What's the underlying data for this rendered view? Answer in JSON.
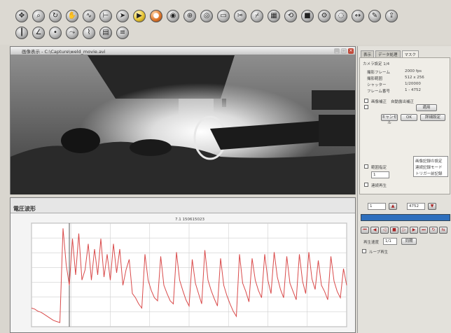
{
  "toolbar": {
    "row1_icons": [
      "move-icon",
      "zoom-icon",
      "rotate-icon",
      "hand-icon",
      "curve-icon",
      "measure-icon",
      "arrow-icon",
      "play-icon",
      "record-icon",
      "capture-icon",
      "crosshair-icon",
      "target-icon",
      "frame-icon",
      "clip-icon",
      "cut-icon",
      "film-icon",
      "reset-icon",
      "stop-icon",
      "settings-icon",
      "scope-icon",
      "pan-icon",
      "pencil-icon",
      "export-icon"
    ],
    "row2_icons": [
      "ruler-icon",
      "angle-icon",
      "point-icon",
      "track-icon",
      "graph-icon",
      "grid-icon",
      "data-icon"
    ]
  },
  "video_window": {
    "title": "画像表示 - C:\\Capture\\weld_movie.avi"
  },
  "chart_window": {
    "title": "電圧波形",
    "caption": "7.1 150615023"
  },
  "right_panel": {
    "tabs": [
      "表示",
      "データ処理",
      "マスク"
    ],
    "group_label": "カメラ設定 1/4",
    "info": [
      {
        "label": "撮影フレーム",
        "value": "2000 fps"
      },
      {
        "label": "撮影範囲",
        "value": "512 x 256"
      },
      {
        "label": "シャッター",
        "value": "1/20000"
      },
      {
        "label": "フレーム番号",
        "value": "1 - 4752"
      }
    ],
    "check1": "画像補正",
    "check1b": "自動露出補正",
    "btn_apply": "適用",
    "btn_row": [
      "キャンセル",
      "OK",
      "詳細設定"
    ],
    "list_items": [
      "画像記録の設定",
      "連続記録モード",
      "トリガー前記録"
    ],
    "check2": "範囲指定",
    "field_frame": "1",
    "check3": "連続再生",
    "field_start": "1",
    "field_end": "4752",
    "speed_label": "再生速度",
    "speed_value": "1/1",
    "check4": "ループ再生",
    "sync_label": "同期"
  },
  "chart_data": {
    "type": "line",
    "title": "7.1 150615023",
    "x": [
      0,
      1,
      2,
      3,
      4,
      5,
      6,
      7,
      8,
      9,
      10,
      11,
      12,
      13,
      14,
      15,
      16,
      17,
      18,
      19,
      20,
      21,
      22,
      23,
      24,
      25,
      26,
      27,
      28,
      29,
      30,
      31,
      32,
      33,
      34,
      35,
      36,
      37,
      38,
      39,
      40,
      41,
      42,
      43,
      44,
      45,
      46,
      47,
      48,
      49,
      50,
      51,
      52,
      53,
      54,
      55,
      56,
      57,
      58,
      59,
      60,
      61,
      62,
      63,
      64,
      65,
      66,
      67,
      68,
      69,
      70,
      71,
      72,
      73,
      74,
      75,
      76,
      77,
      78,
      79,
      80,
      81,
      82,
      83,
      84,
      85,
      86,
      87,
      88,
      89,
      90,
      91,
      92,
      93,
      94,
      95,
      96,
      97,
      98,
      99,
      100
    ],
    "series": [
      {
        "values": [
          18,
          17,
          15,
          14,
          12,
          10,
          8,
          6,
          5,
          4,
          95,
          60,
          40,
          85,
          50,
          90,
          45,
          55,
          80,
          45,
          75,
          50,
          85,
          48,
          70,
          45,
          80,
          52,
          75,
          40,
          55,
          65,
          32,
          28,
          22,
          18,
          70,
          45,
          35,
          28,
          25,
          68,
          40,
          32,
          25,
          22,
          72,
          45,
          35,
          26,
          20,
          65,
          42,
          32,
          22,
          74,
          45,
          35,
          27,
          20,
          66,
          40,
          30,
          22,
          15,
          10,
          70,
          42,
          34,
          24,
          66,
          45,
          35,
          28,
          70,
          45,
          32,
          72,
          48,
          36,
          28,
          68,
          42,
          34,
          26,
          70,
          44,
          32,
          72,
          46,
          36,
          64,
          40,
          34,
          26,
          68,
          44,
          34,
          28,
          56,
          40
        ]
      }
    ],
    "ylim": [
      0,
      100
    ],
    "grid": true,
    "color": "#d94a4a"
  }
}
